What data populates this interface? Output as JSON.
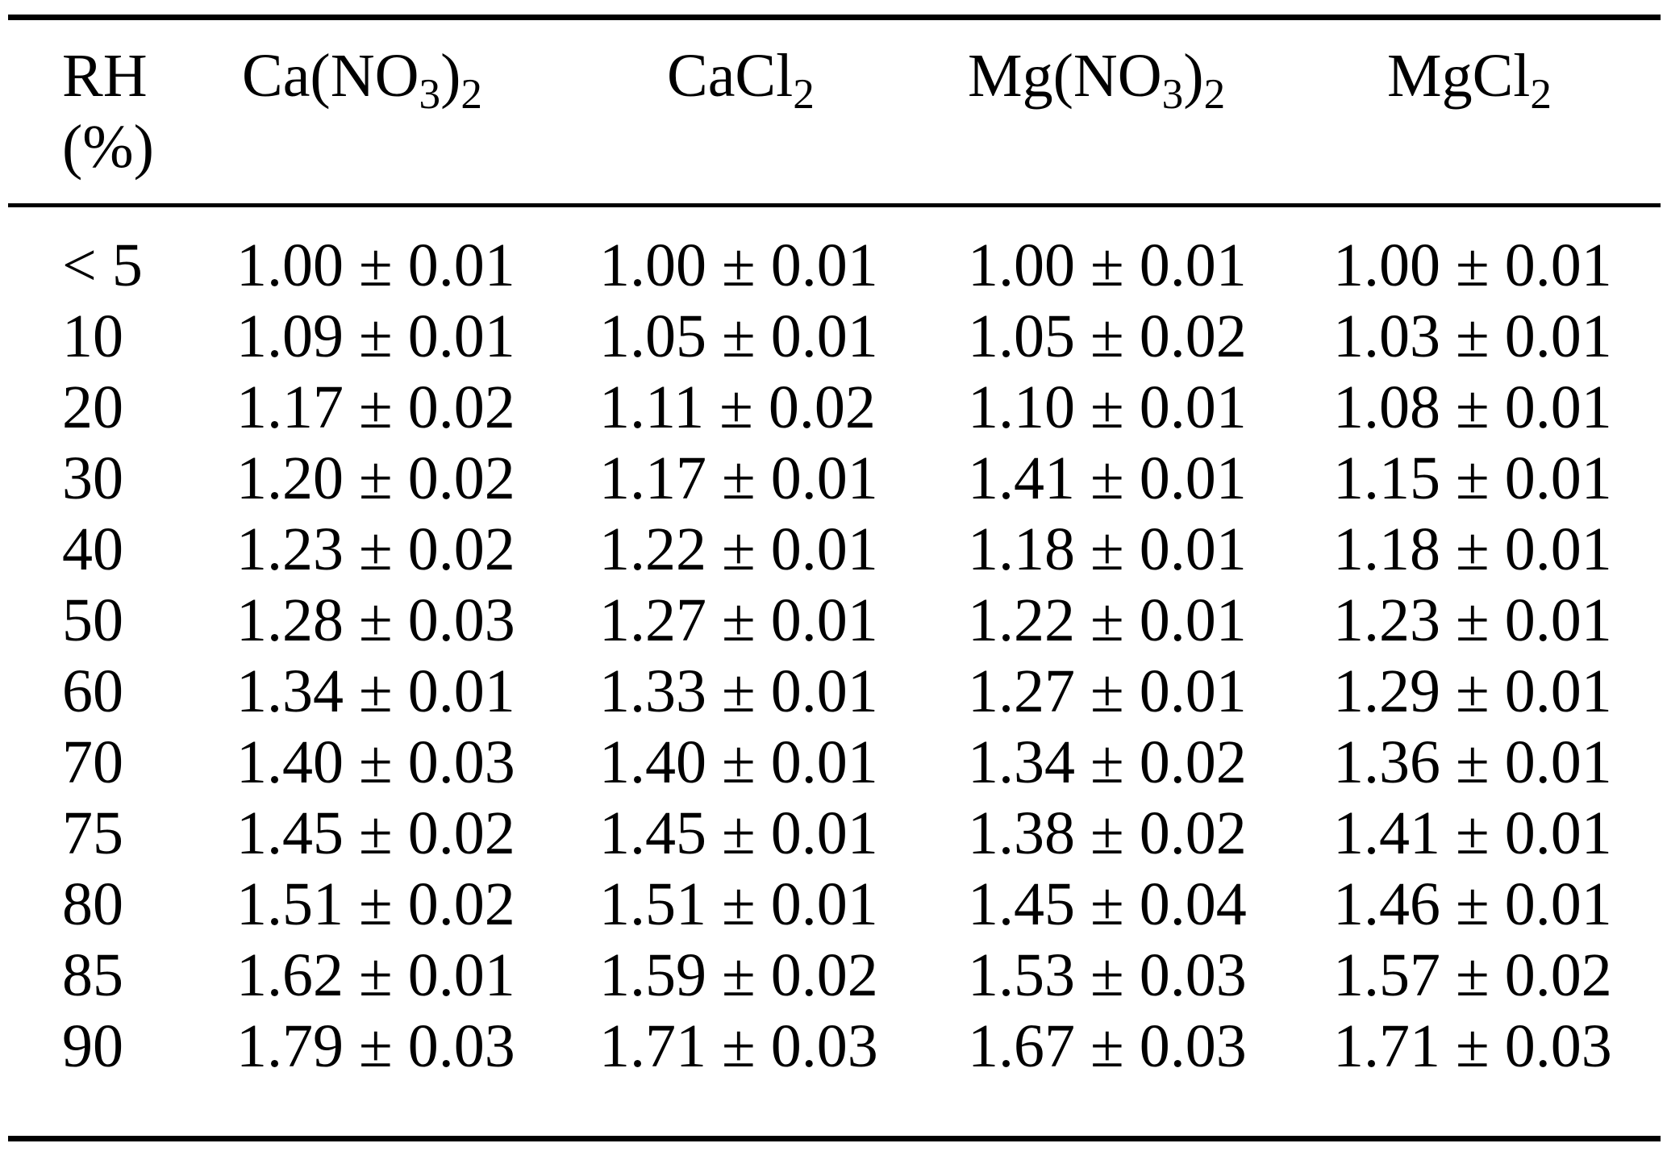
{
  "table": {
    "header": {
      "rh_line1": "RH",
      "rh_line2": "(%)",
      "columns": [
        {
          "key": "ca_no3",
          "parts": [
            {
              "t": "Ca(NO"
            },
            {
              "t": "3",
              "sub": true
            },
            {
              "t": ")"
            },
            {
              "t": "2",
              "sub": true
            }
          ]
        },
        {
          "key": "cacl2",
          "parts": [
            {
              "t": "CaCl"
            },
            {
              "t": "2",
              "sub": true
            }
          ]
        },
        {
          "key": "mg_no3",
          "parts": [
            {
              "t": "Mg(NO"
            },
            {
              "t": "3",
              "sub": true
            },
            {
              "t": ")"
            },
            {
              "t": "2",
              "sub": true
            }
          ]
        },
        {
          "key": "mgcl2",
          "parts": [
            {
              "t": "MgCl"
            },
            {
              "t": "2",
              "sub": true
            }
          ]
        }
      ]
    },
    "column_order": "rh,ca_no3,cacl2,mg_no3,mgcl2",
    "rows": [
      {
        "rh": "< 5",
        "ca_no3": "1.00 ± 0.01",
        "cacl2": "1.00 ± 0.01",
        "mg_no3": "1.00 ± 0.01",
        "mgcl2": "1.00 ± 0.01"
      },
      {
        "rh": "10",
        "ca_no3": "1.09 ± 0.01",
        "cacl2": "1.05 ± 0.01",
        "mg_no3": "1.05 ± 0.02",
        "mgcl2": "1.03 ± 0.01"
      },
      {
        "rh": "20",
        "ca_no3": "1.17 ± 0.02",
        "cacl2": "1.11 ± 0.02",
        "mg_no3": "1.10 ± 0.01",
        "mgcl2": "1.08 ± 0.01"
      },
      {
        "rh": "30",
        "ca_no3": "1.20 ± 0.02",
        "cacl2": "1.17 ± 0.01",
        "mg_no3": "1.41 ± 0.01",
        "mgcl2": "1.15 ± 0.01"
      },
      {
        "rh": "40",
        "ca_no3": "1.23 ± 0.02",
        "cacl2": "1.22 ± 0.01",
        "mg_no3": "1.18 ± 0.01",
        "mgcl2": "1.18 ± 0.01"
      },
      {
        "rh": "50",
        "ca_no3": "1.28 ± 0.03",
        "cacl2": "1.27 ± 0.01",
        "mg_no3": "1.22 ± 0.01",
        "mgcl2": "1.23 ± 0.01"
      },
      {
        "rh": "60",
        "ca_no3": "1.34 ± 0.01",
        "cacl2": "1.33 ± 0.01",
        "mg_no3": "1.27 ± 0.01",
        "mgcl2": "1.29 ± 0.01"
      },
      {
        "rh": "70",
        "ca_no3": "1.40 ± 0.03",
        "cacl2": "1.40 ± 0.01",
        "mg_no3": "1.34 ± 0.02",
        "mgcl2": "1.36 ± 0.01"
      },
      {
        "rh": "75",
        "ca_no3": "1.45 ± 0.02",
        "cacl2": "1.45 ± 0.01",
        "mg_no3": "1.38 ± 0.02",
        "mgcl2": "1.41 ± 0.01"
      },
      {
        "rh": "80",
        "ca_no3": "1.51 ± 0.02",
        "cacl2": "1.51 ± 0.01",
        "mg_no3": "1.45 ± 0.04",
        "mgcl2": "1.46 ± 0.01"
      },
      {
        "rh": "85",
        "ca_no3": "1.62 ± 0.01",
        "cacl2": "1.59 ± 0.02",
        "mg_no3": "1.53 ± 0.03",
        "mgcl2": "1.57 ± 0.02"
      },
      {
        "rh": "90",
        "ca_no3": "1.79 ± 0.03",
        "cacl2": "1.71 ± 0.03",
        "mg_no3": "1.67 ± 0.03",
        "mgcl2": "1.71 ± 0.03"
      }
    ]
  }
}
